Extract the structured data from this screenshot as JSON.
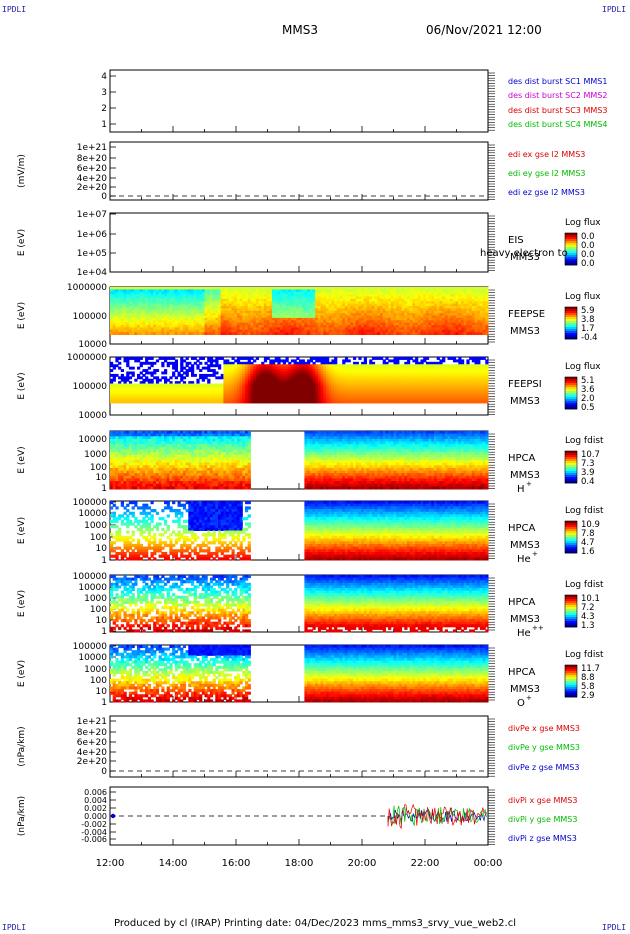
{
  "corners": {
    "tl": "IPDLI",
    "tr": "IPDLI",
    "bl": "IPDLI",
    "br": "IPDLI"
  },
  "header": {
    "mission": "MMS3",
    "datetime": "06/Nov/2021 12:00"
  },
  "footer": {
    "text": "Produced by cl (IRAP)   Printing date: 04/Dec/2023   mms_mms3_srvy_vue_web2.cl"
  },
  "colors": {
    "mms1": "#0000cc",
    "mms2": "#cc00cc",
    "mms3": "#dd0000",
    "mms4": "#00bb00"
  },
  "chart_data": [
    {
      "type": "line",
      "id": "dist-burst",
      "ticks": [
        "4",
        "3",
        "2",
        "1"
      ],
      "legend": [
        "des dist burst SC1 MMS1",
        "des dist burst SC2 MMS2",
        "des dist burst SC3 MMS3",
        "des dist burst SC4 MMS4"
      ]
    },
    {
      "type": "line",
      "id": "edi",
      "ylabel": "(mV/m)",
      "ticks": [
        "1e+21",
        "8e+20",
        "6e+20",
        "4e+20",
        "2e+20",
        "0"
      ],
      "legend": [
        "edi ex gse l2 MMS3",
        "edi ey gse l2 MMS3",
        "edi ez gse l2 MMS3"
      ]
    },
    {
      "type": "heatmap",
      "id": "eis",
      "ylabel": "E (eV)",
      "ticks": [
        "1e+07",
        "1e+06",
        "1e+05",
        "1e+04"
      ],
      "labels": [
        "EIS",
        "MMS3"
      ],
      "overlay": "heavy electron to",
      "cbar_title": "Log flux",
      "cbar_ticks": [
        "0.0",
        "0.0",
        "0.0",
        "0.0"
      ]
    },
    {
      "type": "heatmap",
      "id": "feepse",
      "ylabel": "E (eV)",
      "ticks": [
        "1000000",
        "100000",
        "10000"
      ],
      "labels": [
        "FEEPSE",
        "MMS3"
      ],
      "cbar_title": "Log flux",
      "cbar_ticks": [
        "5.9",
        "3.8",
        "1.7",
        "-0.4"
      ]
    },
    {
      "type": "heatmap",
      "id": "feepsi",
      "ylabel": "E (eV)",
      "ticks": [
        "1000000",
        "100000",
        "10000"
      ],
      "labels": [
        "FEEPSI",
        "MMS3"
      ],
      "cbar_title": "Log flux",
      "cbar_ticks": [
        "5.1",
        "3.6",
        "2.0",
        "0.5"
      ]
    },
    {
      "type": "heatmap",
      "id": "hpca-h",
      "ylabel": "E (eV)",
      "ticks": [
        "10000",
        "1000",
        "100",
        "10",
        "1"
      ],
      "labels": [
        "HPCA",
        "MMS3"
      ],
      "species": "H",
      "charge": "+",
      "cbar_title": "Log fdist",
      "cbar_ticks": [
        "10.7",
        "7.3",
        "3.9",
        "0.4"
      ]
    },
    {
      "type": "heatmap",
      "id": "hpca-he",
      "ylabel": "E (eV)",
      "ticks": [
        "100000",
        "10000",
        "1000",
        "100",
        "10",
        "1"
      ],
      "labels": [
        "HPCA",
        "MMS3"
      ],
      "species": "He",
      "charge": "+",
      "cbar_title": "Log fdist",
      "cbar_ticks": [
        "10.9",
        "7.8",
        "4.7",
        "1.6"
      ]
    },
    {
      "type": "heatmap",
      "id": "hpca-hepp",
      "ylabel": "E (eV)",
      "ticks": [
        "100000",
        "10000",
        "1000",
        "100",
        "10",
        "1"
      ],
      "labels": [
        "HPCA",
        "MMS3"
      ],
      "species": "He",
      "charge": "++",
      "cbar_title": "Log fdist",
      "cbar_ticks": [
        "10.1",
        "7.2",
        "4.3",
        "1.3"
      ]
    },
    {
      "type": "heatmap",
      "id": "hpca-o",
      "ylabel": "E (eV)",
      "ticks": [
        "100000",
        "10000",
        "1000",
        "100",
        "10",
        "1"
      ],
      "labels": [
        "HPCA",
        "MMS3"
      ],
      "species": "O",
      "charge": "+",
      "cbar_title": "Log fdist",
      "cbar_ticks": [
        "11.7",
        "8.8",
        "5.8",
        "2.9"
      ]
    },
    {
      "type": "line",
      "id": "divpe",
      "ylabel": "(nPa/km)",
      "ticks": [
        "1e+21",
        "8e+20",
        "6e+20",
        "4e+20",
        "2e+20",
        "0"
      ],
      "legend": [
        "divPe x gse MMS3",
        "divPe y gse MMS3",
        "divPe z gse MMS3"
      ]
    },
    {
      "type": "line",
      "id": "divpi",
      "ylabel": "(nPa/km)",
      "ticks": [
        "0.006",
        "0.004",
        "0.002",
        "0.000",
        "-0.002",
        "-0.004",
        "-0.006"
      ],
      "legend": [
        "divPi x gse MMS3",
        "divPi y gse MMS3",
        "divPi z gse MMS3"
      ]
    }
  ],
  "x_axis": {
    "ticks": [
      "12:00",
      "14:00",
      "16:00",
      "18:00",
      "20:00",
      "22:00",
      "00:00"
    ]
  }
}
